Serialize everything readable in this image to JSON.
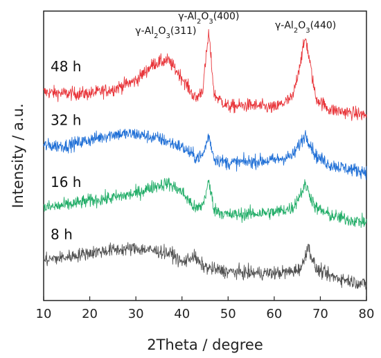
{
  "chart_data": {
    "type": "line",
    "xlabel": "2Theta / degree",
    "ylabel": "Intensity / a.u.",
    "xlim": [
      10,
      80
    ],
    "xticks": [
      10,
      20,
      30,
      40,
      50,
      60,
      70,
      80
    ],
    "x_tick_labels": [
      "10",
      "20",
      "30",
      "40",
      "50",
      "60",
      "70",
      "80"
    ],
    "grid": false,
    "legend": "none (labels placed beside each curve)",
    "series": [
      {
        "name": "48 h",
        "color": "#e8353a",
        "x": [
          10,
          15,
          20,
          25,
          30,
          34,
          37,
          40,
          43,
          44.5,
          45.8,
          47,
          50,
          55,
          60,
          64,
          66.8,
          69,
          72,
          76,
          80
        ],
        "y": [
          0.72,
          0.715,
          0.715,
          0.73,
          0.76,
          0.82,
          0.83,
          0.77,
          0.695,
          0.73,
          0.925,
          0.71,
          0.67,
          0.675,
          0.665,
          0.7,
          0.91,
          0.7,
          0.66,
          0.65,
          0.64
        ]
      },
      {
        "name": "32 h",
        "color": "#1f6fd6",
        "x": [
          10,
          15,
          20,
          25,
          30,
          35,
          40,
          43,
          44.5,
          45.8,
          47,
          50,
          55,
          60,
          64,
          66.8,
          69,
          72,
          76,
          80
        ],
        "y": [
          0.535,
          0.535,
          0.555,
          0.575,
          0.575,
          0.56,
          0.53,
          0.495,
          0.5,
          0.57,
          0.49,
          0.475,
          0.48,
          0.485,
          0.5,
          0.575,
          0.5,
          0.47,
          0.455,
          0.445
        ]
      },
      {
        "name": "16 h",
        "color": "#22ad68",
        "x": [
          10,
          15,
          20,
          25,
          30,
          34,
          37,
          40,
          43,
          44.5,
          45.8,
          47,
          50,
          55,
          60,
          64,
          66.8,
          69,
          72,
          76,
          80
        ],
        "y": [
          0.32,
          0.33,
          0.345,
          0.355,
          0.37,
          0.395,
          0.405,
          0.375,
          0.315,
          0.33,
          0.41,
          0.315,
          0.295,
          0.3,
          0.305,
          0.32,
          0.4,
          0.32,
          0.295,
          0.28,
          0.27
        ]
      },
      {
        "name": "8 h",
        "color": "#505050",
        "x": [
          10,
          15,
          20,
          25,
          30,
          35,
          38,
          40,
          42.5,
          44,
          46,
          50,
          55,
          60,
          64,
          66,
          67.3,
          69,
          72,
          76,
          80
        ],
        "y": [
          0.14,
          0.15,
          0.165,
          0.175,
          0.18,
          0.17,
          0.16,
          0.13,
          0.155,
          0.125,
          0.11,
          0.1,
          0.095,
          0.095,
          0.1,
          0.115,
          0.19,
          0.11,
          0.085,
          0.07,
          0.055
        ]
      }
    ],
    "annotations": [
      {
        "text": "γ-Al",
        "sub1": "2",
        "mid": "O",
        "sub2": "3",
        "tail": "(311)",
        "x": 36.5
      },
      {
        "text": "γ-Al",
        "sub1": "2",
        "mid": "O",
        "sub2": "3",
        "tail": "(400)",
        "x": 45.8
      },
      {
        "text": "γ-Al",
        "sub1": "2",
        "mid": "O",
        "sub2": "3",
        "tail": "(440)",
        "x": 66.8
      }
    ]
  }
}
